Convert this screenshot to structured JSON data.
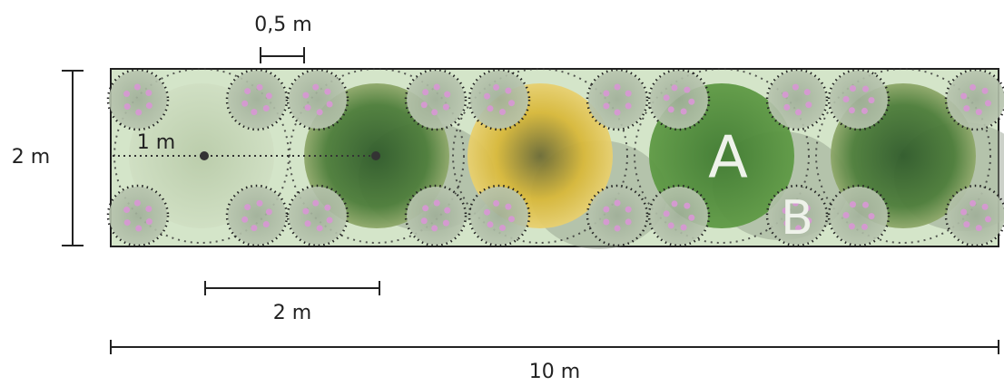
{
  "labels": {
    "half_meter": "0,5 m",
    "one_meter": "1 m",
    "height": "2 m",
    "two_meter": "2 m",
    "length": "10 m",
    "tree_a": "A",
    "tree_b": "B"
  }
}
